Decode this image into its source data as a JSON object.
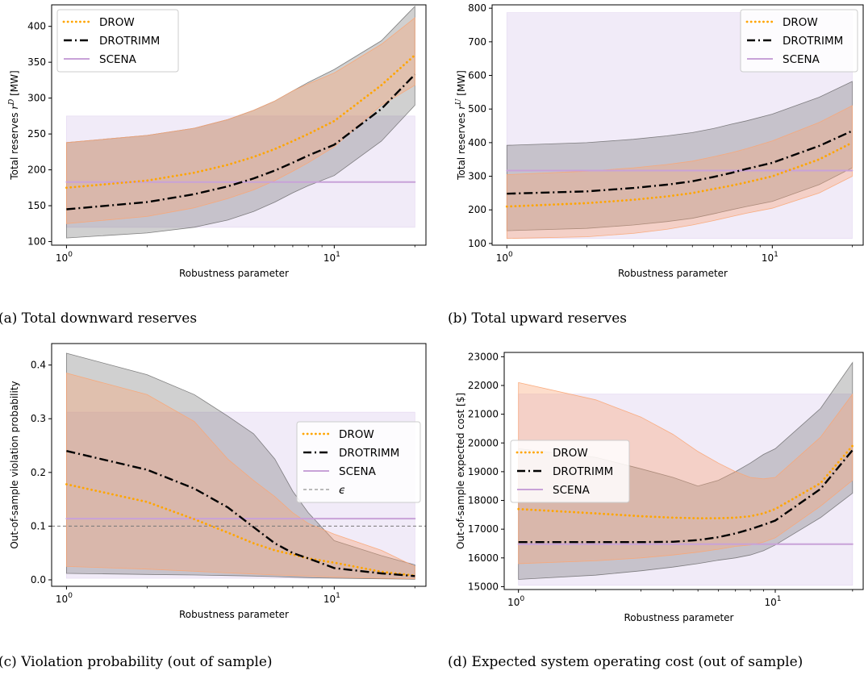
{
  "colors": {
    "drow": "#ffa500",
    "drotrimm": "#000000",
    "scena": "#c8a2d8",
    "drow_band": "#f9a676",
    "drotrimm_band": "#6e6e6e",
    "scena_band": "#e6daf2",
    "epsilon": "#777777"
  },
  "chart_data": [
    {
      "type": "line",
      "caption": "(a) Total downward reserves",
      "xlabel": "Robustness parameter",
      "ylabel": "Total reserves r^D [MW]",
      "xscale": "log",
      "xlim": [
        0.88,
        22
      ],
      "ylim": [
        95,
        430
      ],
      "yticks": [
        100,
        150,
        200,
        250,
        300,
        350,
        400
      ],
      "xticks": [
        {
          "v": 1,
          "base": "10",
          "exp": "0"
        },
        {
          "v": 10,
          "base": "10",
          "exp": "1"
        }
      ],
      "legend_position": "upper left",
      "x": [
        1,
        2,
        3,
        4,
        5,
        6,
        7,
        8,
        10,
        15,
        20
      ],
      "series": [
        {
          "name": "DROW",
          "style": "dotted",
          "values": [
            175,
            185,
            196,
            207,
            218,
            229,
            240,
            250,
            268,
            318,
            360
          ],
          "band_low": [
            125,
            135,
            147,
            160,
            172,
            185,
            198,
            210,
            232,
            290,
            318
          ],
          "band_high": [
            238,
            248,
            258,
            270,
            283,
            296,
            310,
            320,
            335,
            375,
            412
          ]
        },
        {
          "name": "DROTRIMM",
          "style": "dashdot",
          "values": [
            145,
            155,
            166,
            177,
            188,
            199,
            210,
            220,
            235,
            285,
            333
          ],
          "band_low": [
            105,
            112,
            120,
            130,
            142,
            155,
            168,
            178,
            192,
            240,
            290
          ],
          "band_high": [
            238,
            248,
            258,
            270,
            283,
            296,
            310,
            322,
            340,
            380,
            428
          ]
        },
        {
          "name": "SCENA",
          "style": "solid",
          "values": [
            183,
            183,
            183,
            183,
            183,
            183,
            183,
            183,
            183,
            183,
            183
          ],
          "band_low": [
            120,
            120,
            120,
            120,
            120,
            120,
            120,
            120,
            120,
            120,
            120
          ],
          "band_high": [
            275,
            275,
            275,
            275,
            275,
            275,
            275,
            275,
            275,
            275,
            275
          ]
        }
      ]
    },
    {
      "type": "line",
      "caption": "(b) Total upward reserves",
      "xlabel": "Robustness parameter",
      "ylabel": "Total reserves r^U [MW]",
      "xscale": "log",
      "xlim": [
        0.88,
        22
      ],
      "ylim": [
        95,
        810
      ],
      "yticks": [
        100,
        200,
        300,
        400,
        500,
        600,
        700,
        800
      ],
      "xticks": [
        {
          "v": 1,
          "base": "10",
          "exp": "0"
        },
        {
          "v": 10,
          "base": "10",
          "exp": "1"
        }
      ],
      "legend_position": "upper right",
      "x": [
        1,
        2,
        3,
        4,
        5,
        6,
        7,
        8,
        10,
        15,
        20
      ],
      "series": [
        {
          "name": "DROW",
          "style": "dotted",
          "values": [
            210,
            220,
            230,
            240,
            250,
            262,
            272,
            282,
            300,
            350,
            400
          ],
          "band_low": [
            115,
            120,
            130,
            142,
            155,
            168,
            180,
            190,
            205,
            250,
            300
          ],
          "band_high": [
            305,
            315,
            325,
            335,
            345,
            358,
            370,
            382,
            405,
            460,
            510
          ]
        },
        {
          "name": "DROTRIMM",
          "style": "dashdot",
          "values": [
            248,
            255,
            265,
            275,
            285,
            298,
            310,
            322,
            340,
            390,
            435
          ],
          "band_low": [
            138,
            145,
            155,
            165,
            175,
            188,
            200,
            210,
            225,
            275,
            325
          ],
          "band_high": [
            392,
            400,
            410,
            420,
            430,
            442,
            455,
            465,
            485,
            535,
            582
          ]
        },
        {
          "name": "SCENA",
          "style": "solid",
          "values": [
            317,
            317,
            317,
            317,
            317,
            317,
            317,
            317,
            317,
            317,
            317
          ],
          "band_low": [
            115,
            115,
            115,
            115,
            115,
            115,
            115,
            115,
            115,
            115,
            115
          ],
          "band_high": [
            787,
            787,
            787,
            787,
            787,
            787,
            787,
            787,
            787,
            787,
            787
          ]
        }
      ]
    },
    {
      "type": "line",
      "caption": "(c) Violation probability (out of sample)",
      "xlabel": "Robustness parameter",
      "ylabel": "Out-of-sample violation probability",
      "xscale": "log",
      "xlim": [
        0.88,
        22
      ],
      "ylim": [
        -0.012,
        0.44
      ],
      "yticks": [
        0.0,
        0.1,
        0.2,
        0.3,
        0.4
      ],
      "xticks": [
        {
          "v": 1,
          "base": "10",
          "exp": "0"
        },
        {
          "v": 10,
          "base": "10",
          "exp": "1"
        }
      ],
      "legend_position": "center right",
      "epsilon": {
        "name": "ϵ",
        "value": 0.1
      },
      "x": [
        1,
        2,
        3,
        4,
        5,
        6,
        7,
        8,
        10,
        15,
        20
      ],
      "series": [
        {
          "name": "DROW",
          "style": "dotted",
          "values": [
            0.178,
            0.145,
            0.113,
            0.088,
            0.068,
            0.055,
            0.047,
            0.04,
            0.032,
            0.015,
            0.008
          ],
          "band_low": [
            0.025,
            0.02,
            0.016,
            0.013,
            0.011,
            0.009,
            0.008,
            0.007,
            0.005,
            0.003,
            0.002
          ],
          "band_high": [
            0.385,
            0.345,
            0.295,
            0.225,
            0.185,
            0.155,
            0.125,
            0.105,
            0.085,
            0.055,
            0.025
          ]
        },
        {
          "name": "DROTRIMM",
          "style": "dashdot",
          "values": [
            0.24,
            0.205,
            0.17,
            0.135,
            0.098,
            0.068,
            0.05,
            0.04,
            0.022,
            0.012,
            0.007
          ],
          "band_low": [
            0.012,
            0.01,
            0.009,
            0.008,
            0.007,
            0.006,
            0.005,
            0.004,
            0.003,
            0.002,
            0.001
          ],
          "band_high": [
            0.422,
            0.382,
            0.345,
            0.305,
            0.272,
            0.225,
            0.165,
            0.125,
            0.073,
            0.045,
            0.028
          ]
        },
        {
          "name": "SCENA",
          "style": "solid",
          "values": [
            0.114,
            0.114,
            0.114,
            0.114,
            0.114,
            0.114,
            0.114,
            0.114,
            0.114,
            0.114,
            0.114
          ],
          "band_low": [
            0.003,
            0.003,
            0.003,
            0.003,
            0.003,
            0.003,
            0.003,
            0.003,
            0.003,
            0.003,
            0.003
          ],
          "band_high": [
            0.312,
            0.312,
            0.312,
            0.312,
            0.312,
            0.312,
            0.312,
            0.312,
            0.312,
            0.312,
            0.312
          ]
        }
      ]
    },
    {
      "type": "line",
      "caption": "(d) Expected system operating cost (out of sample)",
      "xlabel": "Robustness parameter",
      "ylabel": "Out-of-sample expected cost [$]",
      "xscale": "log",
      "xlim": [
        0.88,
        22
      ],
      "ylim": [
        14900,
        23150
      ],
      "yticks": [
        15000,
        16000,
        17000,
        18000,
        19000,
        20000,
        21000,
        22000,
        23000
      ],
      "xticks": [
        {
          "v": 1,
          "base": "10",
          "exp": "0"
        },
        {
          "v": 10,
          "base": "10",
          "exp": "1"
        }
      ],
      "legend_position": "center left",
      "x": [
        1,
        2,
        3,
        4,
        5,
        6,
        7,
        8,
        9,
        10,
        15,
        20
      ],
      "series": [
        {
          "name": "DROW",
          "style": "dotted",
          "values": [
            17700,
            17550,
            17450,
            17400,
            17380,
            17380,
            17400,
            17450,
            17550,
            17700,
            18600,
            19900
          ],
          "band_low": [
            15800,
            15900,
            16000,
            16100,
            16200,
            16300,
            16400,
            16450,
            16550,
            16700,
            17800,
            18700
          ],
          "band_high": [
            22100,
            21500,
            20900,
            20300,
            19700,
            19300,
            19000,
            18800,
            18750,
            18800,
            20200,
            21700
          ]
        },
        {
          "name": "DROTRIMM",
          "style": "dashdot",
          "values": [
            16550,
            16550,
            16550,
            16560,
            16620,
            16720,
            16850,
            17000,
            17150,
            17300,
            18400,
            19750
          ],
          "band_low": [
            15250,
            15400,
            15550,
            15680,
            15800,
            15920,
            16000,
            16100,
            16250,
            16450,
            17400,
            18250
          ],
          "band_high": [
            19800,
            19500,
            19100,
            18800,
            18500,
            18700,
            19000,
            19300,
            19600,
            19800,
            21200,
            22800
          ]
        },
        {
          "name": "SCENA",
          "style": "solid",
          "values": [
            16480,
            16480,
            16480,
            16480,
            16480,
            16480,
            16480,
            16480,
            16480,
            16480,
            16480,
            16480
          ],
          "band_low": [
            15050,
            15050,
            15050,
            15050,
            15050,
            15050,
            15050,
            15050,
            15050,
            15050,
            15050,
            15050
          ],
          "band_high": [
            21700,
            21700,
            21700,
            21700,
            21700,
            21700,
            21700,
            21700,
            21700,
            21700,
            21700,
            21700
          ]
        }
      ]
    }
  ]
}
